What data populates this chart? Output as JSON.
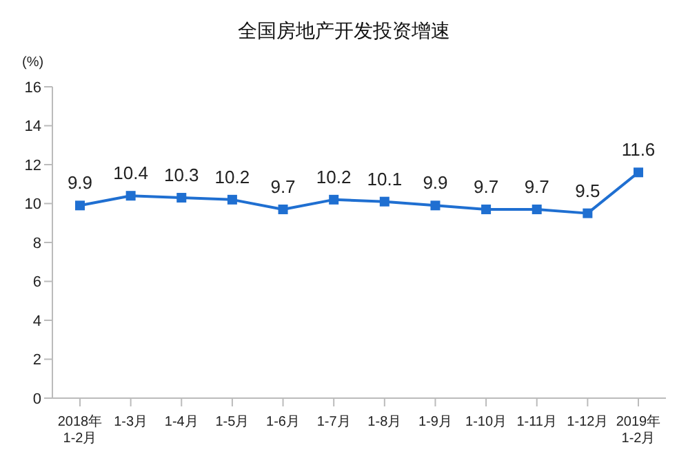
{
  "chart_data": {
    "type": "line",
    "title": "全国房地产开发投资增速",
    "ylabel": "(%)",
    "categories": [
      "2018年\n1-2月",
      "1-3月",
      "1-4月",
      "1-5月",
      "1-6月",
      "1-7月",
      "1-8月",
      "1-9月",
      "1-10月",
      "1-11月",
      "1-12月",
      "2019年\n1-2月"
    ],
    "series": [
      {
        "color": "#1f6fd1",
        "values": [
          9.9,
          10.4,
          10.3,
          10.2,
          9.7,
          10.2,
          10.1,
          9.9,
          9.7,
          9.7,
          9.5,
          11.6
        ]
      }
    ],
    "ylim": [
      0,
      16
    ],
    "yticks": [
      0,
      2,
      4,
      6,
      8,
      10,
      12,
      14,
      16
    ],
    "grid": false,
    "legend": false,
    "marker": "square",
    "line_style": "solid",
    "data_labels": true
  }
}
